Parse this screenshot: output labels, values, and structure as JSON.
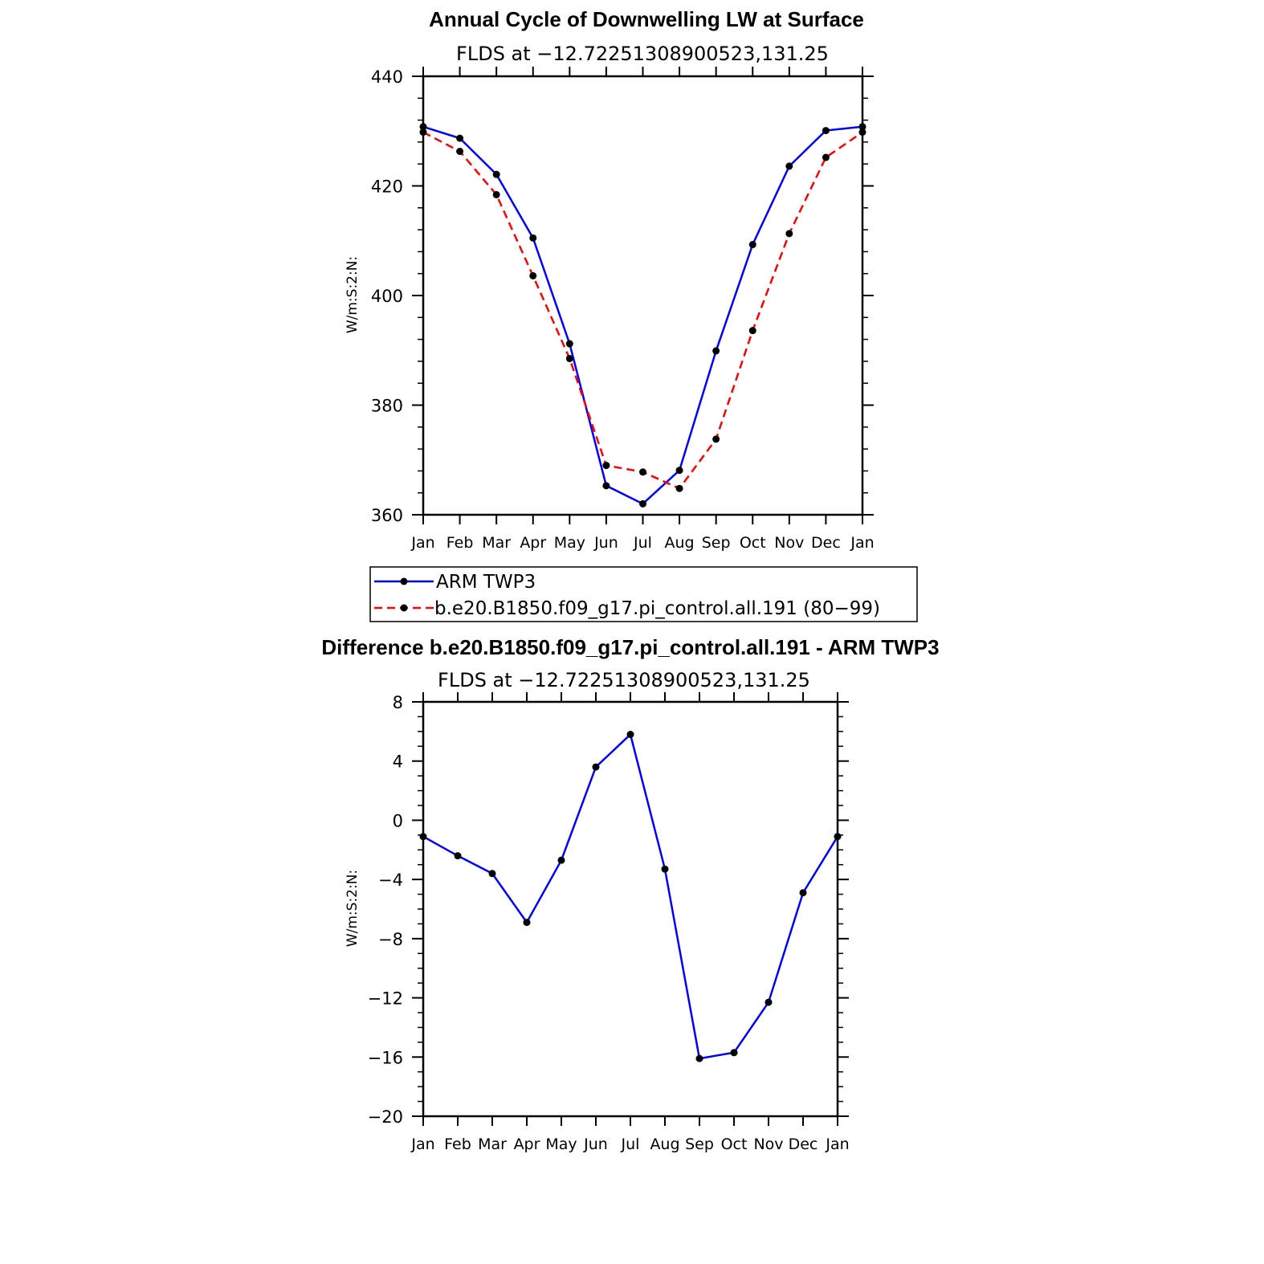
{
  "chart_data": [
    {
      "type": "line",
      "title": "Annual Cycle of Downwelling LW at Surface",
      "subtitle": "FLDS at −12.72251308900523,131.25",
      "ylabel": "W/m:S:2:N:",
      "categories": [
        "Jan",
        "Feb",
        "Mar",
        "Apr",
        "May",
        "Jun",
        "Jul",
        "Aug",
        "Sep",
        "Oct",
        "Nov",
        "Dec",
        "Jan"
      ],
      "ylim": [
        360,
        440
      ],
      "yticks": [
        "360",
        "380",
        "400",
        "420",
        "440"
      ],
      "series": [
        {
          "name": "ARM TWP3",
          "color": "#0000ff",
          "dash": "solid",
          "values": [
            430.8,
            428.7,
            422.1,
            410.5,
            391.2,
            365.3,
            362.0,
            368.1,
            389.9,
            409.3,
            423.6,
            430.1,
            430.8
          ]
        },
        {
          "name": "b.e20.B1850.f09_g17.pi_control.all.191 (80−99)",
          "color": "#ff0000",
          "dash": "dashed",
          "values": [
            429.8,
            426.3,
            418.4,
            403.6,
            388.5,
            369.0,
            367.8,
            364.8,
            373.8,
            393.6,
            411.3,
            425.2,
            429.8
          ]
        }
      ],
      "legend": "below"
    },
    {
      "type": "line",
      "title": "Difference b.e20.B1850.f09_g17.pi_control.all.191 - ARM TWP3",
      "subtitle": "FLDS at −12.72251308900523,131.25",
      "ylabel": "W/m:S:2:N:",
      "categories": [
        "Jan",
        "Feb",
        "Mar",
        "Apr",
        "May",
        "Jun",
        "Jul",
        "Aug",
        "Sep",
        "Oct",
        "Nov",
        "Dec",
        "Jan"
      ],
      "ylim": [
        -20,
        8
      ],
      "yticks": [
        "−20",
        "−16",
        "−12",
        "−8",
        "−4",
        "0",
        "4",
        "8"
      ],
      "series": [
        {
          "color": "#0000ff",
          "dash": "solid",
          "values": [
            -1.1,
            -2.4,
            -3.6,
            -6.9,
            -2.7,
            3.6,
            5.8,
            -3.3,
            -16.1,
            -15.7,
            -12.3,
            -4.9,
            -1.1
          ]
        }
      ]
    }
  ]
}
